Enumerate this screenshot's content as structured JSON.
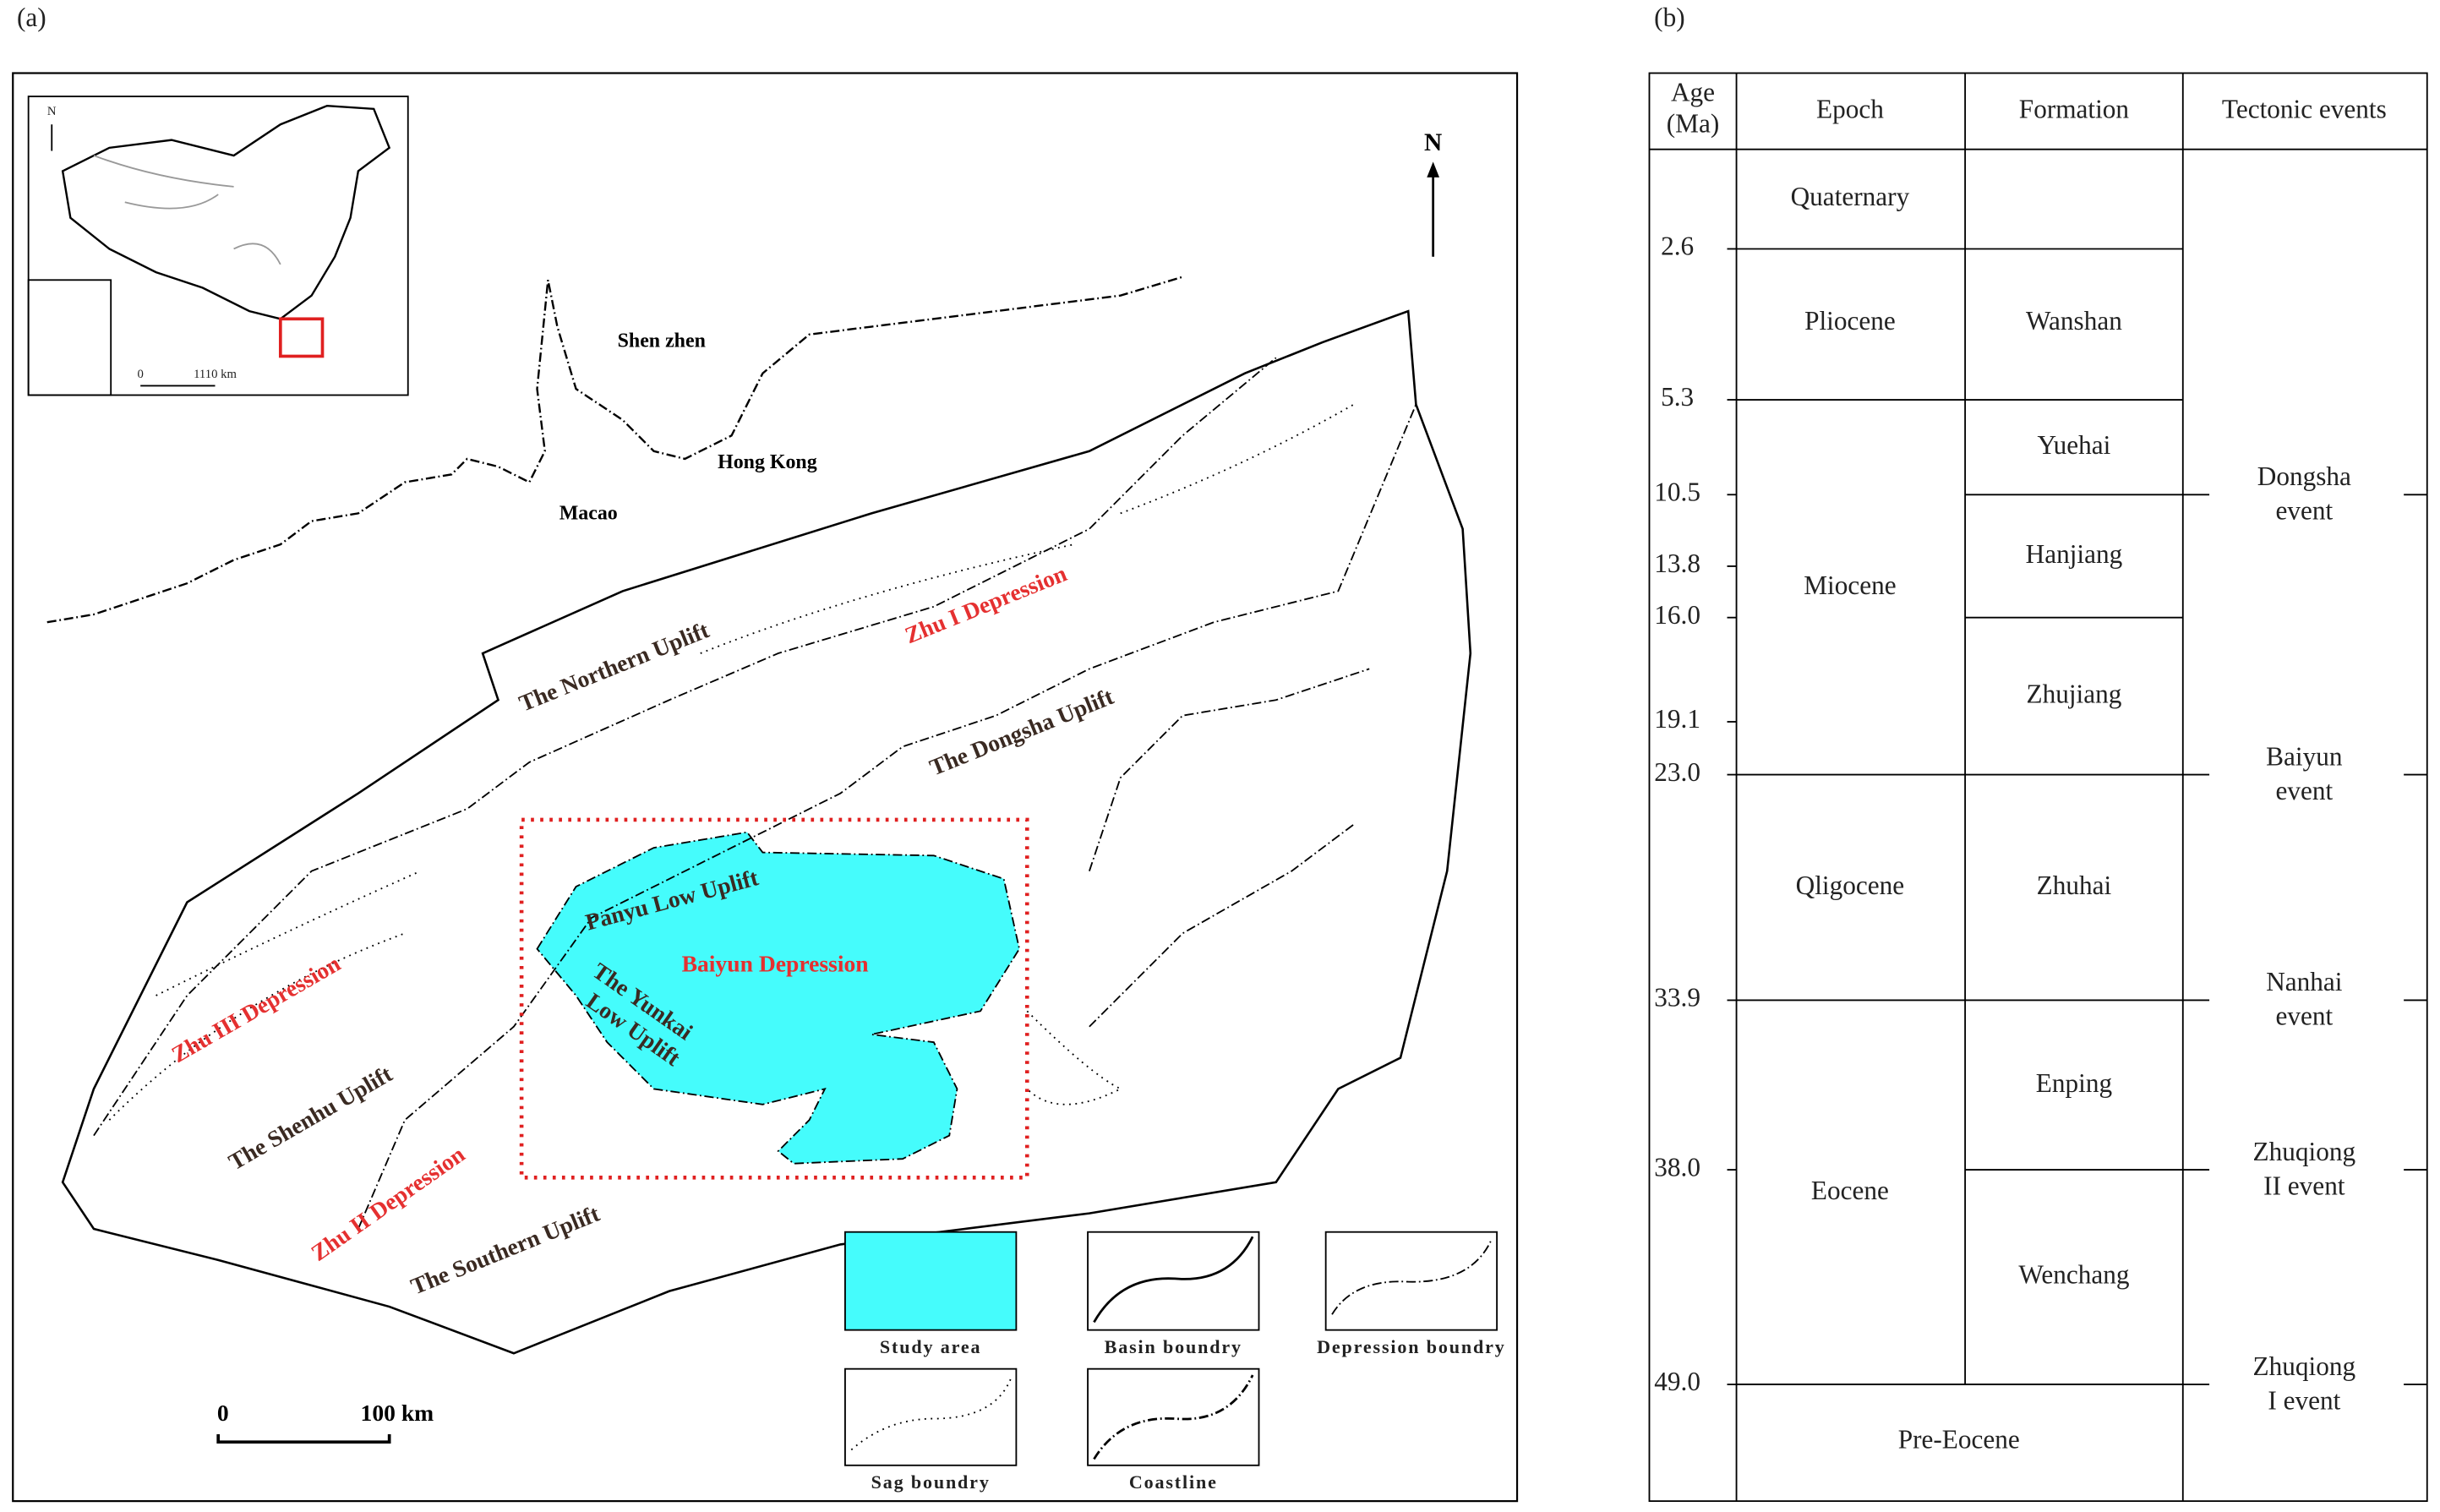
{
  "panel_a": {
    "label": "(a)",
    "north": "N",
    "inset": {
      "north": "N",
      "scale_start": "0",
      "scale_end": "1110 km"
    },
    "places": [
      "Shen zhen",
      "Hong Kong",
      "Macao"
    ],
    "regions": {
      "uplifts": [
        "The Northern Uplift",
        "The Dongsha Uplift",
        "Panyu Low Uplift",
        "The Shenhu Uplift",
        "The Southern Uplift"
      ],
      "yunkai": [
        "The Yunkai",
        "Low Uplift"
      ],
      "depressions": [
        "Zhu I Depression",
        "Baiyun Depression",
        "Zhu III Depression",
        "Zhu II Depression"
      ]
    },
    "legend": [
      "Study area",
      "Basin boundry",
      "Depression boundry",
      "Sag boundry",
      "Coastline"
    ],
    "scale_bar": {
      "start": "0",
      "end": "100 km"
    }
  },
  "panel_b": {
    "label": "(b)",
    "headers": {
      "age": [
        "Age",
        "(Ma)"
      ],
      "epoch": "Epoch",
      "formation": "Formation",
      "events": "Tectonic events"
    },
    "ages": [
      "2.6",
      "5.3",
      "10.5",
      "13.8",
      "16.0",
      "19.1",
      "23.0",
      "33.9",
      "38.0",
      "49.0"
    ],
    "epochs": [
      "Quaternary",
      "Pliocene",
      "Miocene",
      "Qligocene",
      "Eocene",
      "Pre-Eocene"
    ],
    "formations": [
      "Wanshan",
      "Yuehai",
      "Hanjiang",
      "Zhujiang",
      "Zhuhai",
      "Enping",
      "Wenchang"
    ],
    "events": [
      [
        "Dongsha",
        "event"
      ],
      [
        "Baiyun",
        "event"
      ],
      [
        "Nanhai",
        "event"
      ],
      [
        "Zhuqiong",
        "II event"
      ],
      [
        "Zhuqiong",
        "I event"
      ]
    ]
  }
}
